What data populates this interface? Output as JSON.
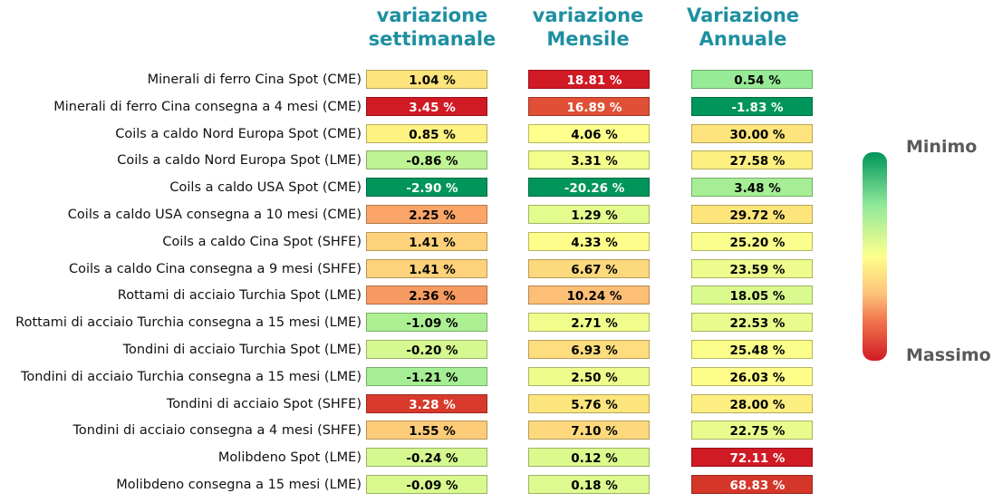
{
  "chart_data": {
    "type": "table",
    "columns": [
      "variazione settimanale",
      "variazione Mensile",
      "Variazione Annuale"
    ],
    "column_titles": [
      [
        "variazione",
        "settimanale"
      ],
      [
        "variazione",
        "Mensile"
      ],
      [
        "Variazione",
        "Annuale"
      ]
    ],
    "rows": [
      {
        "label": "Minerali di ferro Cina Spot (CME)",
        "values": [
          "1.04 %",
          "18.81 %",
          "0.54 %"
        ],
        "colors": [
          "#fde47c",
          "#d01a24",
          "#97eb97"
        ],
        "text_colors": [
          "#000000",
          "#ffffff",
          "#000000"
        ]
      },
      {
        "label": "Minerali di ferro Cina consegna a 4 mesi (CME)",
        "values": [
          "3.45 %",
          "16.89 %",
          "-1.83 %"
        ],
        "colors": [
          "#d01a24",
          "#e04f36",
          "#00955a"
        ],
        "text_colors": [
          "#ffffff",
          "#ffffff",
          "#ffffff"
        ]
      },
      {
        "label": "Coils a caldo Nord Europa Spot (CME)",
        "values": [
          "0.85 %",
          "4.06 %",
          "30.00 %"
        ],
        "colors": [
          "#fef281",
          "#feff8c",
          "#fde47c"
        ],
        "text_colors": [
          "#000000",
          "#000000",
          "#000000"
        ]
      },
      {
        "label": "Coils a caldo Nord Europa Spot (LME)",
        "values": [
          "-0.86 %",
          "3.31 %",
          "27.58 %"
        ],
        "colors": [
          "#bef493",
          "#f3fd8c",
          "#fdf081"
        ],
        "text_colors": [
          "#000000",
          "#000000",
          "#000000"
        ]
      },
      {
        "label": "Coils a caldo USA Spot (CME)",
        "values": [
          "-2.90 %",
          "-20.26 %",
          "3.48 %"
        ],
        "colors": [
          "#00955a",
          "#00955a",
          "#a6ee95"
        ],
        "text_colors": [
          "#ffffff",
          "#ffffff",
          "#000000"
        ]
      },
      {
        "label": "Coils a caldo USA consegna a 10 mesi (CME)",
        "values": [
          "2.25 %",
          "1.29 %",
          "29.72 %"
        ],
        "colors": [
          "#fba568",
          "#e4fb8e",
          "#fde57c"
        ],
        "text_colors": [
          "#000000",
          "#000000",
          "#000000"
        ]
      },
      {
        "label": "Coils a caldo Cina Spot (SHFE)",
        "values": [
          "1.41 %",
          "4.33 %",
          "25.20 %"
        ],
        "colors": [
          "#fdd27b",
          "#fefd8b",
          "#fafe8c"
        ],
        "text_colors": [
          "#000000",
          "#000000",
          "#000000"
        ]
      },
      {
        "label": "Coils a caldo Cina consegna a 9 mesi (SHFE)",
        "values": [
          "1.41 %",
          "6.67 %",
          "23.59 %"
        ],
        "colors": [
          "#fdd27b",
          "#fdd97d",
          "#edfc8d"
        ],
        "text_colors": [
          "#000000",
          "#000000",
          "#000000"
        ]
      },
      {
        "label": "Rottami di acciaio Turchia Spot (LME)",
        "values": [
          "2.36 %",
          "10.24 %",
          "18.05 %"
        ],
        "colors": [
          "#f69b61",
          "#fdbe76",
          "#daf98e"
        ],
        "text_colors": [
          "#000000",
          "#000000",
          "#000000"
        ]
      },
      {
        "label": "Rottami di acciaio Turchia consegna a 15 mesi (LME)",
        "values": [
          "-1.09 %",
          "2.71 %",
          "22.53 %"
        ],
        "colors": [
          "#adf094",
          "#f0fd8c",
          "#e9fb8d"
        ],
        "text_colors": [
          "#000000",
          "#000000",
          "#000000"
        ]
      },
      {
        "label": "Tondini di acciaio Turchia Spot (LME)",
        "values": [
          "-0.20 %",
          "6.93 %",
          "25.48 %"
        ],
        "colors": [
          "#d6f890",
          "#fddd7e",
          "#fbfe8b"
        ],
        "text_colors": [
          "#000000",
          "#000000",
          "#000000"
        ]
      },
      {
        "label": "Tondini di acciaio Turchia consegna a 15 mesi (LME)",
        "values": [
          "-1.21 %",
          "2.50 %",
          "26.03 %"
        ],
        "colors": [
          "#a6ee95",
          "#eefc8c",
          "#fefd8a"
        ],
        "text_colors": [
          "#000000",
          "#000000",
          "#000000"
        ]
      },
      {
        "label": "Tondini di acciaio Spot (SHFE)",
        "values": [
          "3.28 %",
          "5.76 %",
          "28.00 %"
        ],
        "colors": [
          "#d73a2c",
          "#fde57d",
          "#fdee81"
        ],
        "text_colors": [
          "#ffffff",
          "#000000",
          "#000000"
        ]
      },
      {
        "label": "Tondini di acciaio consegna a 4 mesi (SHFE)",
        "values": [
          "1.55 %",
          "7.10 %",
          "22.75 %"
        ],
        "colors": [
          "#fdcc79",
          "#fdd87d",
          "#e9fb8d"
        ],
        "text_colors": [
          "#000000",
          "#000000",
          "#000000"
        ]
      },
      {
        "label": "Molibdeno Spot (LME)",
        "values": [
          "-0.24 %",
          "0.12 %",
          "72.11 %"
        ],
        "colors": [
          "#d6f890",
          "#dcf98e",
          "#d01a24"
        ],
        "text_colors": [
          "#000000",
          "#000000",
          "#ffffff"
        ]
      },
      {
        "label": "Molibdeno consegna a 15 mesi (LME)",
        "values": [
          "-0.09 %",
          "0.18 %",
          "68.83 %"
        ],
        "colors": [
          "#d9f98f",
          "#ddf98f",
          "#d5362a"
        ],
        "text_colors": [
          "#000000",
          "#000000",
          "#ffffff"
        ]
      }
    ],
    "legend": {
      "type": "colorbar",
      "top_label": "Minimo",
      "bottom_label": "Massimo",
      "gradient": [
        "#00955a",
        "#8ee89a",
        "#feff8c",
        "#fdc279",
        "#f0704a",
        "#d01a24"
      ]
    }
  }
}
